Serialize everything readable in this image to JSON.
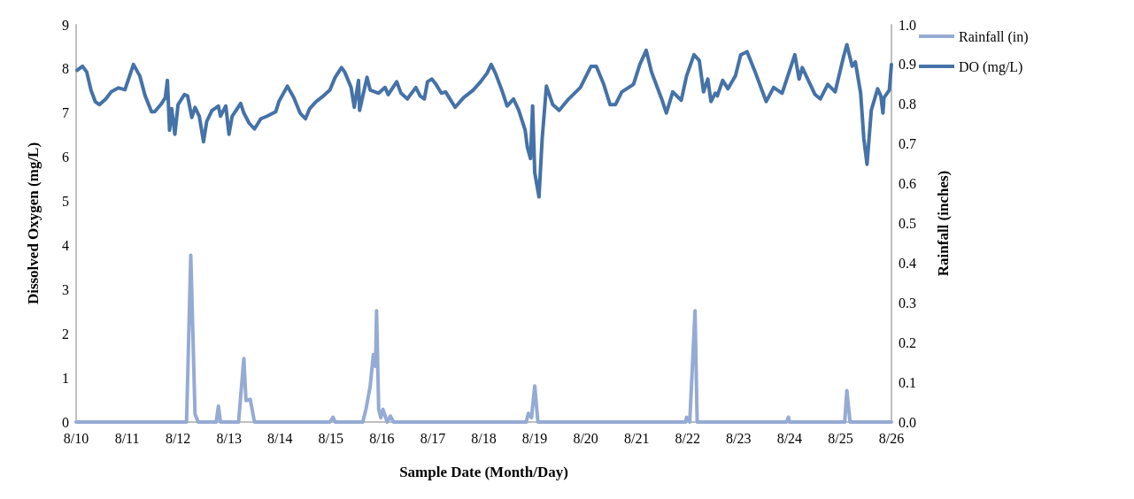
{
  "chart_data": {
    "type": "line",
    "xlabel": "Sample Date (Month/Day)",
    "ylabel": "Dissolved Oxygen (mg/L)",
    "y2label": "Rainfall (inches)",
    "xlim": [
      "--08-10",
      "--08-26"
    ],
    "xticks": [
      {
        "value": "--08-10",
        "label": "8/10"
      },
      {
        "value": "--08-11",
        "label": "8/11"
      },
      {
        "value": "--08-12",
        "label": "8/12"
      },
      {
        "value": "--08-13",
        "label": "8/13"
      },
      {
        "value": "--08-14",
        "label": "8/14"
      },
      {
        "value": "--08-15",
        "label": "8/15"
      },
      {
        "value": "--08-16",
        "label": "8/16"
      },
      {
        "value": "--08-17",
        "label": "8/17"
      },
      {
        "value": "--08-18",
        "label": "8/18"
      },
      {
        "value": "--08-19",
        "label": "8/19"
      },
      {
        "value": "--08-20",
        "label": "8/20"
      },
      {
        "value": "--08-21",
        "label": "8/21"
      },
      {
        "value": "--08-22",
        "label": "8/22"
      },
      {
        "value": "--08-23",
        "label": "8/23"
      },
      {
        "value": "--08-24",
        "label": "8/24"
      },
      {
        "value": "--08-25",
        "label": "8/25"
      },
      {
        "value": "--08-26",
        "label": "8/26"
      }
    ],
    "ylim": [
      0,
      9
    ],
    "yticks": [
      0,
      1,
      2,
      3,
      4,
      5,
      6,
      7,
      8,
      9
    ],
    "y2lim": [
      0,
      1
    ],
    "y2ticks": [
      {
        "value": 0,
        "label": "0.0"
      },
      0.1,
      0.2,
      0.3,
      0.4,
      0.5,
      0.6,
      0.7,
      0.8,
      0.9,
      {
        "value": 1,
        "label": "1.0"
      }
    ],
    "grid": false,
    "legend": "top right",
    "marker": "none",
    "line_style": "solid",
    "series": [
      {
        "name": "Rainfall (in)",
        "color": "#95abd4",
        "axis": "y2",
        "x": [
          "--08-10T00:00",
          "--08-12T04:00",
          "--08-12T06:00",
          "--08-12T08:00",
          "--08-12T09:30",
          "--08-12T18:00",
          "--08-12T19:00",
          "--08-12T20:00",
          "--08-13T04:30",
          "--08-13T07:00",
          "--08-13T08:00",
          "--08-13T10:00",
          "--08-13T12:00",
          "--08-14T23:30",
          "--08-15T01:00",
          "--08-15T02:00",
          "--08-15T15:00",
          "--08-15T16:30",
          "--08-15T18:30",
          "--08-15T20:00",
          "--08-15T21:00",
          "--08-15T21:30",
          "--08-15T22:30",
          "--08-15T23:30",
          "--08-16T00:30",
          "--08-16T02:30",
          "--08-16T04:00",
          "--08-16T05:30",
          "--08-18T20:00",
          "--08-18T21:00",
          "--08-18T22:30",
          "--08-19T00:00",
          "--08-19T01:30",
          "--08-21T23:00",
          "--08-21T23:30",
          "--08-22T01:00",
          "--08-22T03:30",
          "--08-22T04:30",
          "--08-23T22:30",
          "--08-23T23:30",
          "--08-24T00:00",
          "--08-25T02:00",
          "--08-25T03:00",
          "--08-25T04:30",
          "--08-26T00:00"
        ],
        "values": [
          0,
          0,
          0.42,
          0.02,
          0,
          0,
          0.04,
          0,
          0,
          0.16,
          0.054,
          0.057,
          0,
          0,
          0.012,
          0,
          0,
          0.032,
          0.09,
          0.17,
          0.14,
          0.28,
          0.032,
          0.011,
          0.032,
          0,
          0.015,
          0,
          0,
          0.022,
          0.011,
          0.091,
          0,
          0,
          0.012,
          0,
          0.28,
          0,
          0,
          0.012,
          0,
          0,
          0.079,
          0,
          0
        ]
      },
      {
        "name": "DO (mg/L)",
        "color": "#4572a7",
        "axis": "y",
        "x": [
          "--08-10T00:30",
          "--08-10T03:00",
          "--08-10T05:00",
          "--08-10T07:00",
          "--08-10T09:00",
          "--08-10T11:00",
          "--08-10T14:00",
          "--08-10T16:30",
          "--08-10T20:00",
          "--08-10T23:00",
          "--08-11T03:00",
          "--08-11T06:00",
          "--08-11T08:30",
          "--08-11T11:30",
          "--08-11T13:00",
          "--08-11T16:00",
          "--08-11T18:00",
          "--08-11T19:00",
          "--08-11T20:00",
          "--08-11T21:00",
          "--08-11T22:30",
          "--08-12T00:00",
          "--08-12T03:00",
          "--08-12T04:30",
          "--08-12T06:30",
          "--08-12T08:00",
          "--08-12T10:00",
          "--08-12T12:00",
          "--08-12T13:30",
          "--08-12T16:00",
          "--08-12T19:00",
          "--08-12T20:00",
          "--08-12T22:30",
          "--08-13T00:00",
          "--08-13T01:30",
          "--08-13T05:30",
          "--08-13T07:00",
          "--08-13T09:30",
          "--08-13T12:00",
          "--08-13T15:00",
          "--08-13T18:00",
          "--08-13T22:00",
          "--08-13T23:30",
          "--08-14T03:30",
          "--08-14T06:30",
          "--08-14T09:30",
          "--08-14T12:00",
          "--08-14T14:00",
          "--08-14T17:00",
          "--08-14T20:30",
          "--08-14T23:30",
          "--08-15T02:00",
          "--08-15T05:00",
          "--08-15T06:30",
          "--08-15T09:30",
          "--08-15T11:00",
          "--08-15T13:00",
          "--08-15T13:30",
          "--08-15T17:00",
          "--08-15T18:30",
          "--08-15T22:30",
          "--08-16T01:30",
          "--08-16T03:00",
          "--08-16T07:00",
          "--08-16T09:00",
          "--08-16T12:00",
          "--08-16T16:00",
          "--08-16T18:00",
          "--08-16T20:00",
          "--08-16T21:30",
          "--08-16T23:30",
          "--08-17T01:30",
          "--08-17T04:00",
          "--08-17T06:00",
          "--08-17T10:30",
          "--08-17T14:30",
          "--08-17T19:00",
          "--08-17T22:30",
          "--08-18T01:30",
          "--08-18T03:30",
          "--08-18T05:30",
          "--08-18T08:30",
          "--08-18T11:00",
          "--08-18T14:00",
          "--08-18T16:30",
          "--08-18T19:30",
          "--08-18T20:30",
          "--08-18T22:00",
          "--08-18T23:00",
          "--08-19T00:00",
          "--08-19T02:00",
          "--08-19T03:30",
          "--08-19T05:30",
          "--08-19T08:30",
          "--08-19T11:30",
          "--08-19T16:00",
          "--08-19T21:30",
          "--08-20T02:30",
          "--08-20T05:00",
          "--08-20T08:30",
          "--08-20T11:30",
          "--08-20T14:00",
          "--08-20T17:00",
          "--08-20T22:30",
          "--08-21T01:30",
          "--08-21T04:30",
          "--08-21T07:00",
          "--08-21T12:00",
          "--08-21T14:00",
          "--08-21T17:00",
          "--08-21T21:00",
          "--08-21T23:30",
          "--08-22T03:00",
          "--08-22T05:30",
          "--08-22T07:30",
          "--08-22T09:30",
          "--08-22T11:00",
          "--08-22T13:00",
          "--08-22T14:00",
          "--08-22T16:30",
          "--08-22T19:00",
          "--08-22T22:30",
          "--08-23T01:00",
          "--08-23T04:00",
          "--08-23T07:30",
          "--08-23T13:00",
          "--08-23T16:30",
          "--08-23T20:30",
          "--08-24T02:30",
          "--08-24T04:30",
          "--08-24T06:00",
          "--08-24T12:00",
          "--08-24T14:30",
          "--08-24T18:00",
          "--08-24T21:30",
          "--08-25T01:30",
          "--08-25T03:00",
          "--08-25T05:30",
          "--08-25T07:00",
          "--08-25T09:30",
          "--08-25T11:00",
          "--08-25T12:30",
          "--08-25T14:30",
          "--08-25T17:30",
          "--08-25T19:00",
          "--08-25T20:00",
          "--08-25T20:30",
          "--08-25T23:00",
          "--08-26T00:00"
        ],
        "values": [
          7.97,
          8.06,
          7.93,
          7.52,
          7.26,
          7.19,
          7.32,
          7.48,
          7.57,
          7.53,
          8.1,
          7.84,
          7.39,
          7.03,
          7.03,
          7.2,
          7.35,
          7.74,
          6.61,
          7.1,
          6.52,
          7.19,
          7.42,
          7.39,
          6.9,
          7.13,
          6.93,
          6.35,
          6.81,
          7.06,
          7.16,
          6.93,
          7.16,
          6.52,
          6.93,
          7.22,
          7.0,
          6.77,
          6.64,
          6.87,
          6.93,
          7.03,
          7.26,
          7.61,
          7.35,
          7.0,
          6.87,
          7.1,
          7.26,
          7.39,
          7.52,
          7.81,
          8.03,
          7.93,
          7.58,
          7.13,
          7.74,
          7.06,
          7.81,
          7.52,
          7.45,
          7.58,
          7.42,
          7.71,
          7.45,
          7.32,
          7.58,
          7.39,
          7.32,
          7.71,
          7.77,
          7.65,
          7.45,
          7.48,
          7.13,
          7.35,
          7.52,
          7.71,
          7.9,
          8.1,
          7.9,
          7.52,
          7.16,
          7.32,
          7.06,
          6.61,
          6.23,
          5.97,
          7.16,
          5.65,
          5.1,
          6.42,
          7.61,
          7.19,
          7.06,
          7.32,
          7.58,
          8.06,
          8.06,
          7.65,
          7.19,
          7.19,
          7.48,
          7.65,
          8.1,
          8.42,
          7.93,
          7.29,
          7.0,
          7.48,
          7.29,
          7.84,
          8.32,
          8.19,
          7.48,
          7.77,
          7.26,
          7.45,
          7.39,
          7.74,
          7.55,
          7.84,
          8.32,
          8.39,
          7.97,
          7.26,
          7.58,
          7.45,
          8.32,
          7.77,
          8.03,
          7.42,
          7.32,
          7.65,
          7.48,
          8.29,
          8.55,
          8.06,
          8.16,
          7.45,
          6.42,
          5.84,
          7.06,
          7.55,
          7.39,
          7.0,
          7.35,
          7.52,
          8.1
        ]
      }
    ]
  }
}
